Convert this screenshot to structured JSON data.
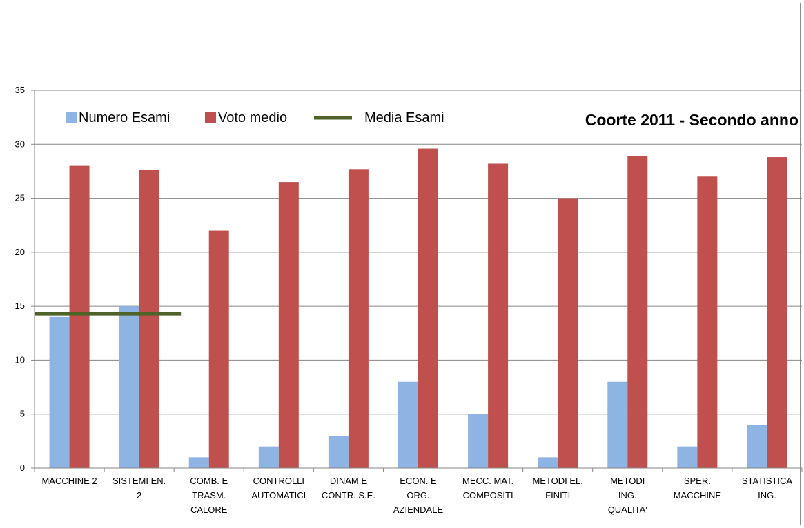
{
  "chart_data": {
    "type": "bar",
    "title": "Coorte 2011 - Secondo anno",
    "xlabel": "",
    "ylabel": "",
    "ylim": [
      0,
      35
    ],
    "yticks": [
      0,
      5,
      10,
      15,
      20,
      25,
      30,
      35
    ],
    "grid": true,
    "legend_position": "top-left",
    "categories": [
      [
        "MACCHINE 2"
      ],
      [
        "SISTEMI EN.",
        "2"
      ],
      [
        "COMB. E",
        "TRASM.",
        "CALORE"
      ],
      [
        "CONTROLLI",
        "AUTOMATICI"
      ],
      [
        "DINAM.E",
        "CONTR. S.E."
      ],
      [
        "ECON. E",
        "ORG.",
        "AZIENDALE"
      ],
      [
        "MECC. MAT.",
        "COMPOSITI"
      ],
      [
        "METODI  EL.",
        "FINITI"
      ],
      [
        "METODI",
        "ING.",
        "QUALITA'"
      ],
      [
        "SPER.",
        "MACCHINE"
      ],
      [
        "STATISTICA",
        "ING."
      ]
    ],
    "series": [
      {
        "name": "Numero Esami",
        "color": "#8eb4e3",
        "values": [
          14,
          15,
          1,
          2,
          3,
          8,
          5,
          1,
          8,
          2,
          4
        ]
      },
      {
        "name": "Voto medio",
        "color": "#c0504d",
        "values": [
          28,
          27.6,
          22,
          26.5,
          27.7,
          29.6,
          28.2,
          25,
          28.9,
          27,
          28.8
        ]
      }
    ],
    "reference_line": {
      "name": "Media Esami",
      "value": 14.3,
      "color": "#4f6228",
      "span_categories": [
        0,
        2
      ]
    }
  }
}
